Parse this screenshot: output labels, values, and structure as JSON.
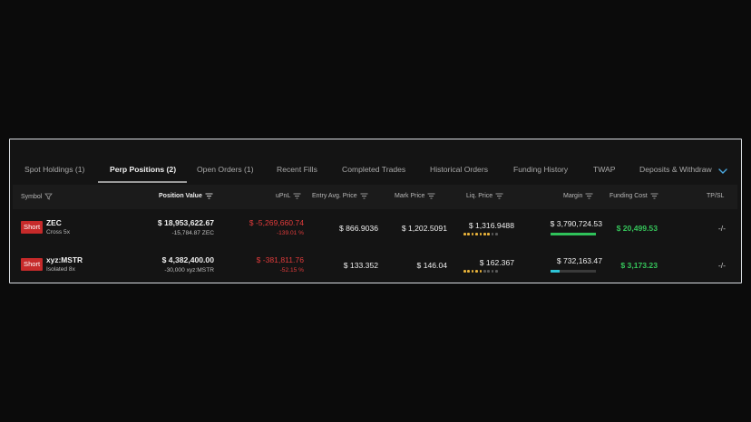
{
  "tabs": [
    {
      "label": "Spot Holdings (1)",
      "active": false
    },
    {
      "label": "Perp Positions (2)",
      "active": true
    },
    {
      "label": "Open Orders (1)",
      "active": false
    },
    {
      "label": "Recent Fills",
      "active": false
    },
    {
      "label": "Completed Trades",
      "active": false
    },
    {
      "label": "Historical Orders",
      "active": false
    },
    {
      "label": "Funding History",
      "active": false
    },
    {
      "label": "TWAP",
      "active": false
    },
    {
      "label": "Deposits & Withdraw",
      "active": false
    }
  ],
  "columns": {
    "symbol": "Symbol",
    "position_value": "Position Value",
    "upnl": "uPnL",
    "entry_price": "Entry Avg. Price",
    "mark_price": "Mark Price",
    "liq_price": "Liq. Price",
    "margin": "Margin",
    "funding_cost": "Funding Cost",
    "tpsl": "TP/SL"
  },
  "positions": [
    {
      "side": "Short",
      "symbol": "ZEC",
      "leverage": "Cross 5x",
      "position_value": "$ 18,953,622.67",
      "size": "-15,784.87 ZEC",
      "upnl": "$ -5,269,660.74",
      "upnl_pct": "-139.01 %",
      "entry_price": "$ 866.9036",
      "mark_price": "$ 1,202.5091",
      "liq_price": "$ 1,316.9488",
      "liq_risk_level": 7,
      "liq_risk_max": 9,
      "margin": "$ 3,790,724.53",
      "margin_ratio": 1.0,
      "margin_color": "#2fc25a",
      "funding_cost": "$ 20,499.53",
      "tpsl": "-/-"
    },
    {
      "side": "Short",
      "symbol": "xyz:MSTR",
      "leverage": "Isolated 8x",
      "position_value": "$ 4,382,400.00",
      "size": "-30,000 xyz:MSTR",
      "upnl": "$ -381,811.76",
      "upnl_pct": "-52.15 %",
      "entry_price": "$ 133.352",
      "mark_price": "$ 146.04",
      "liq_price": "$ 162.367",
      "liq_risk_level": 5,
      "liq_risk_max": 9,
      "margin": "$ 732,163.47",
      "margin_ratio": 0.2,
      "margin_color": "#2ec4d6",
      "funding_cost": "$ 3,173.23",
      "tpsl": "-/-"
    }
  ]
}
